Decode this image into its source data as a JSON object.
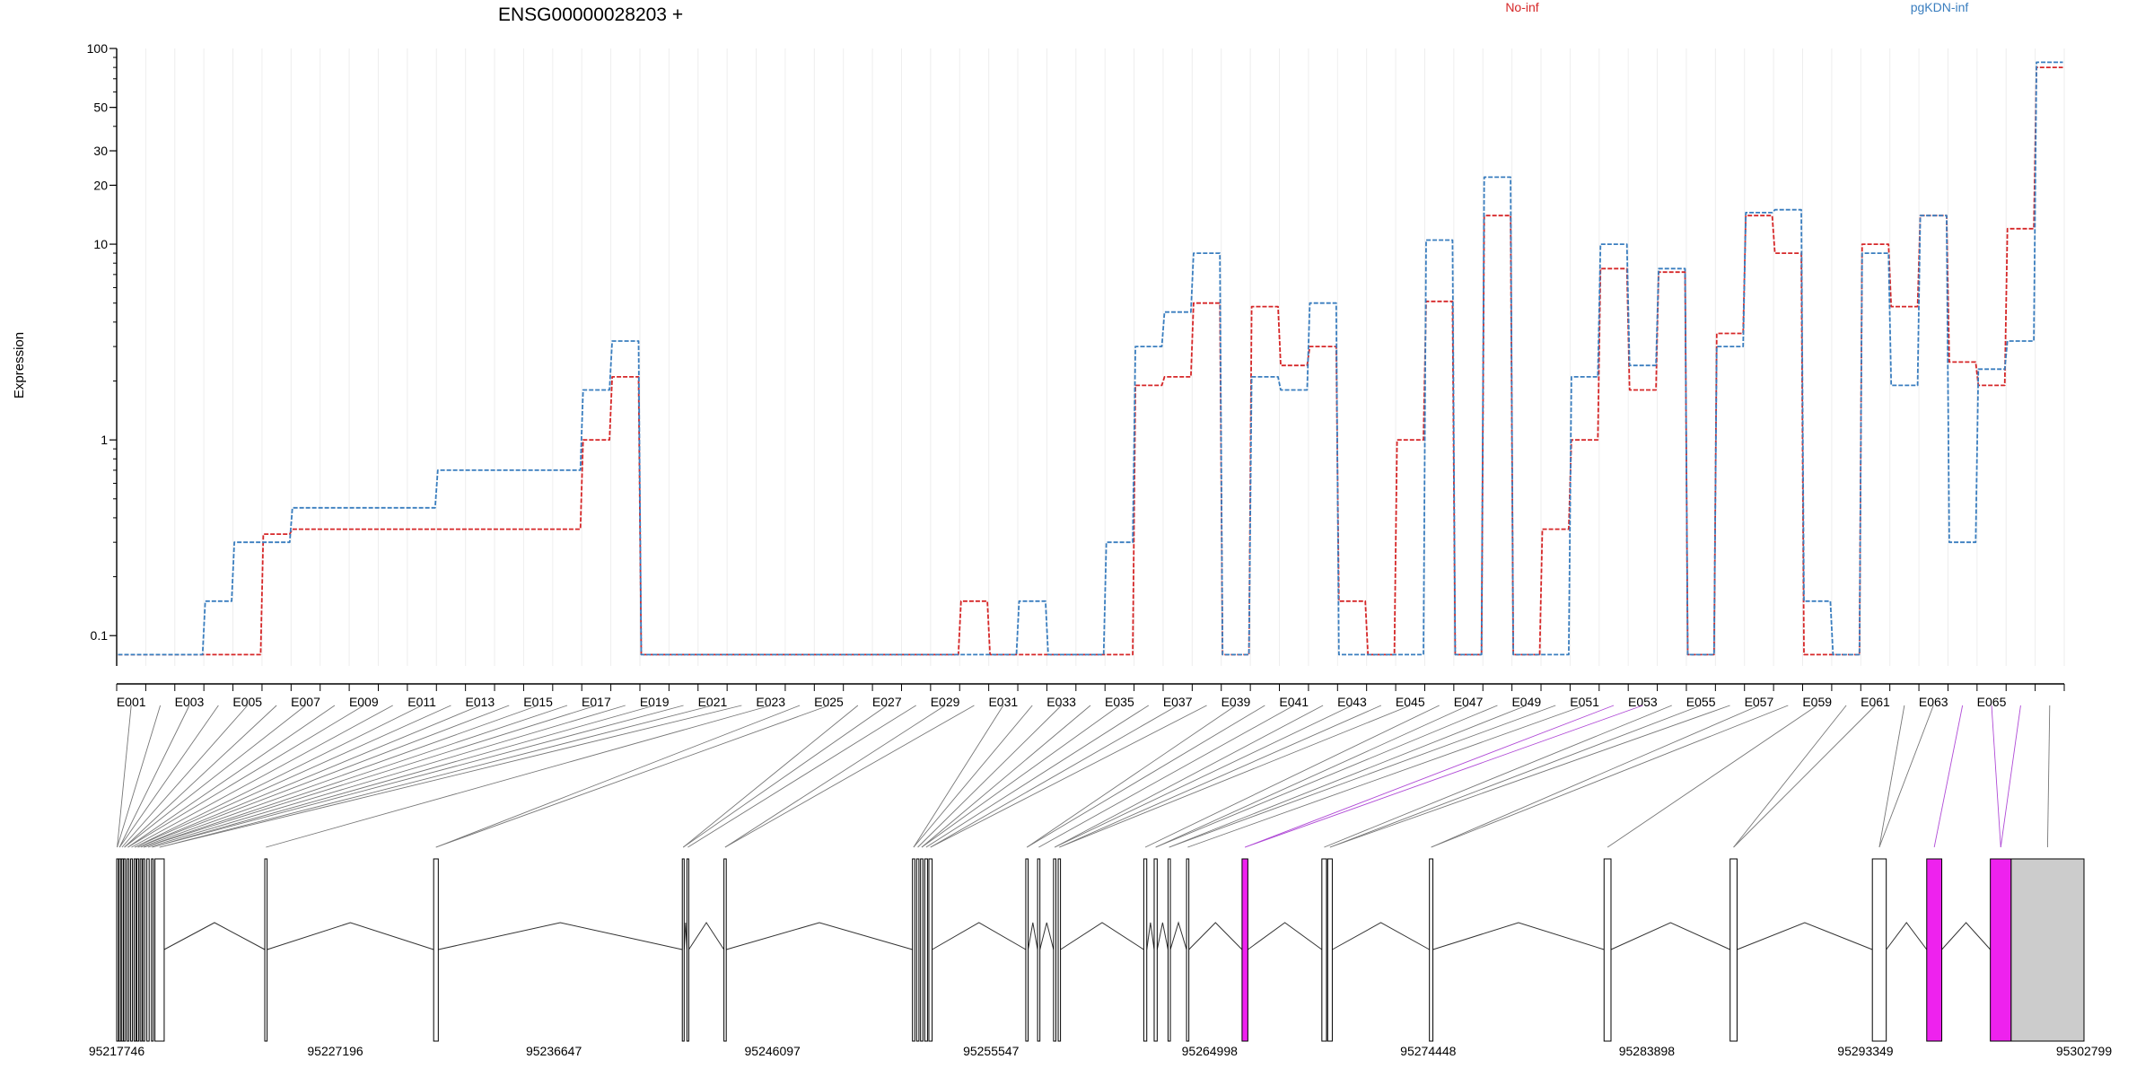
{
  "title": "ENSG00000028203 +",
  "ylabel": "Expression",
  "colors": {
    "no_inf": "#d62728",
    "pgkdn_inf": "#3a7ebf",
    "highlight": "#ee22ee",
    "utr": "#cccccc"
  },
  "legend": {
    "no_inf": "No-inf",
    "pgkdn_inf": "pgKDN-inf"
  },
  "chart_data": {
    "type": "line",
    "y_scale": "log",
    "ylim": [
      0.07,
      100
    ],
    "yticks": [
      {
        "v": 100,
        "label": "100"
      },
      {
        "v": 50,
        "label": "50"
      },
      {
        "v": 30,
        "label": "30"
      },
      {
        "v": 20,
        "label": "20"
      },
      {
        "v": 10,
        "label": "10"
      },
      {
        "v": 1,
        "label": "1"
      },
      {
        "v": 0.1,
        "label": "0.1"
      }
    ],
    "exon_labels": [
      "E001",
      "E003",
      "E005",
      "E007",
      "E009",
      "E011",
      "E013",
      "E015",
      "E017",
      "E019",
      "E021",
      "E023",
      "E025",
      "E027",
      "E029",
      "E031",
      "E033",
      "E035",
      "E037",
      "E039",
      "E041",
      "E043",
      "E045",
      "E047",
      "E049",
      "E051",
      "E053",
      "E055",
      "E057",
      "E059",
      "E061",
      "E063",
      "E065"
    ],
    "series": [
      {
        "name": "No-inf",
        "values": [
          0.08,
          0.08,
          0.08,
          0.08,
          0.08,
          0.33,
          0.35,
          0.35,
          0.35,
          0.35,
          0.35,
          0.35,
          0.35,
          0.35,
          0.35,
          0.35,
          1.0,
          2.1,
          0.08,
          0.08,
          0.08,
          0.08,
          0.08,
          0.08,
          0.08,
          0.08,
          0.08,
          0.08,
          0.08,
          0.15,
          0.08,
          0.08,
          0.08,
          0.08,
          0.08,
          1.9,
          2.1,
          5.0,
          0.08,
          4.8,
          2.4,
          3.0,
          0.15,
          0.08,
          1.0,
          5.1,
          0.08,
          14.0,
          0.08,
          0.35,
          1.0,
          7.5,
          1.8,
          7.2,
          0.08,
          3.5,
          14.0,
          9.0,
          0.08,
          0.08,
          10.0,
          4.8,
          14.0,
          2.5,
          1.9,
          12.0,
          80.0
        ]
      },
      {
        "name": "pgKDN-inf",
        "values": [
          0.08,
          0.08,
          0.08,
          0.15,
          0.3,
          0.3,
          0.45,
          0.45,
          0.45,
          0.45,
          0.45,
          0.7,
          0.7,
          0.7,
          0.7,
          0.7,
          1.8,
          3.2,
          0.08,
          0.08,
          0.08,
          0.08,
          0.08,
          0.08,
          0.08,
          0.08,
          0.08,
          0.08,
          0.08,
          0.08,
          0.08,
          0.15,
          0.08,
          0.08,
          0.3,
          3.0,
          4.5,
          9.0,
          0.08,
          2.1,
          1.8,
          5.0,
          0.08,
          0.08,
          0.08,
          10.5,
          0.08,
          22.0,
          0.08,
          0.08,
          2.1,
          10.0,
          2.4,
          7.5,
          0.08,
          3.0,
          14.5,
          15.0,
          0.15,
          0.08,
          9.0,
          1.9,
          14.0,
          0.3,
          2.3,
          3.2,
          85.0
        ]
      }
    ],
    "gene_axis_labels": [
      "95217746",
      "95227196",
      "95236647",
      "95246097",
      "95255547",
      "95264998",
      "95274448",
      "95283898",
      "95293349",
      "95302799"
    ],
    "gene_range": [
      95217746,
      95302799
    ],
    "exons": [
      [
        95217746,
        95217790,
        "e"
      ],
      [
        95217850,
        95217890,
        "e"
      ],
      [
        95217950,
        95218000,
        "e"
      ],
      [
        95218050,
        95218110,
        "e"
      ],
      [
        95218200,
        95218260,
        "e"
      ],
      [
        95218350,
        95218420,
        "e"
      ],
      [
        95218500,
        95218560,
        "e"
      ],
      [
        95218620,
        95218700,
        "e"
      ],
      [
        95218760,
        95218820,
        "e"
      ],
      [
        95218880,
        95218960,
        "e"
      ],
      [
        95219050,
        95219150,
        "e"
      ],
      [
        95219250,
        95219300,
        "e"
      ],
      [
        95219400,
        95219800,
        "e"
      ],
      [
        95224150,
        95224250,
        "e"
      ],
      [
        95231450,
        95231650,
        "e"
      ],
      [
        95242200,
        95242280,
        "e"
      ],
      [
        95242400,
        95242480,
        "e"
      ],
      [
        95244000,
        95244100,
        "e"
      ],
      [
        95252150,
        95252250,
        "e"
      ],
      [
        95252330,
        95252430,
        "e"
      ],
      [
        95252500,
        95252600,
        "e"
      ],
      [
        95252680,
        95252800,
        "e"
      ],
      [
        95252860,
        95253000,
        "e"
      ],
      [
        95257050,
        95257150,
        "e"
      ],
      [
        95257560,
        95257660,
        "e"
      ],
      [
        95258250,
        95258350,
        "e"
      ],
      [
        95258450,
        95258550,
        "e"
      ],
      [
        95262150,
        95262280,
        "e"
      ],
      [
        95262600,
        95262730,
        "e"
      ],
      [
        95263200,
        95263300,
        "e"
      ],
      [
        95264000,
        95264100,
        "e"
      ],
      [
        95266400,
        95266650,
        "h"
      ],
      [
        95269850,
        95270050,
        "e"
      ],
      [
        95270100,
        95270300,
        "e"
      ],
      [
        95274500,
        95274650,
        "e"
      ],
      [
        95282050,
        95282350,
        "e"
      ],
      [
        95287500,
        95287800,
        "e"
      ],
      [
        95293650,
        95294250,
        "e"
      ],
      [
        95296000,
        95296650,
        "h"
      ],
      [
        95298750,
        95299650,
        "h"
      ],
      [
        95299650,
        95302799,
        "u"
      ]
    ]
  }
}
